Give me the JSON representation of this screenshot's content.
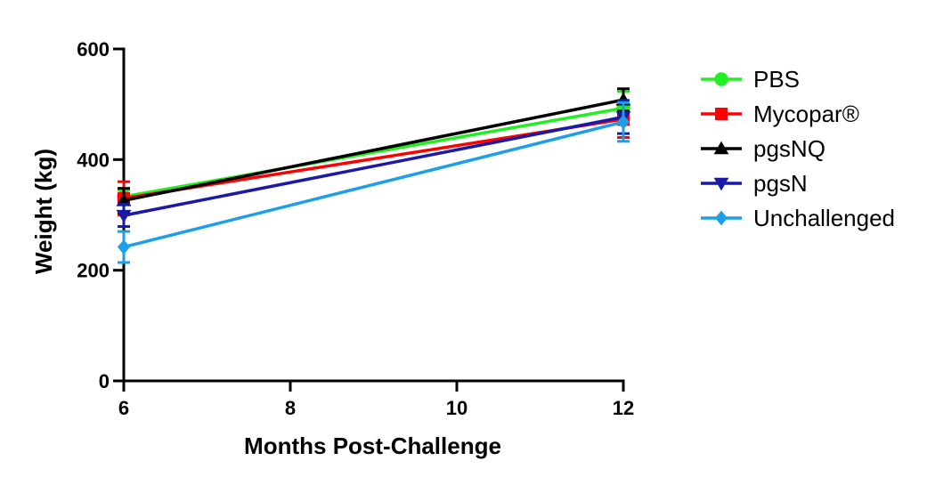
{
  "chart_data": {
    "type": "line",
    "title": "",
    "xlabel": "Months Post-Challenge",
    "ylabel": "Weight (kg)",
    "xlim": [
      6,
      12
    ],
    "ylim": [
      0,
      600
    ],
    "x_ticks": [
      "6",
      "8",
      "10",
      "12"
    ],
    "y_ticks": [
      "0",
      "200",
      "400",
      "600"
    ],
    "x_tick_values": [
      6,
      8,
      10,
      12
    ],
    "y_tick_values": [
      0,
      200,
      400,
      600
    ],
    "x": [
      6,
      12
    ],
    "grid": false,
    "legend_position": "right",
    "series": [
      {
        "name": "PBS",
        "color": "#22ee22",
        "marker": "circle",
        "values": [
          333,
          493
        ],
        "errors": [
          12,
          30
        ]
      },
      {
        "name": "Mycopar®",
        "color": "#ff0000",
        "marker": "square",
        "values": [
          330,
          473
        ],
        "errors": [
          30,
          33
        ]
      },
      {
        "name": "pgsNQ",
        "color": "#000000",
        "marker": "triangle-up",
        "values": [
          326,
          508
        ],
        "errors": [
          22,
          20
        ]
      },
      {
        "name": "pgsN",
        "color": "#1a1aa6",
        "marker": "triangle-down",
        "values": [
          299,
          477
        ],
        "errors": [
          20,
          30
        ]
      },
      {
        "name": "Unchallenged",
        "color": "#1e9ee8",
        "marker": "diamond",
        "values": [
          242,
          468
        ],
        "errors": [
          28,
          35
        ]
      }
    ]
  }
}
